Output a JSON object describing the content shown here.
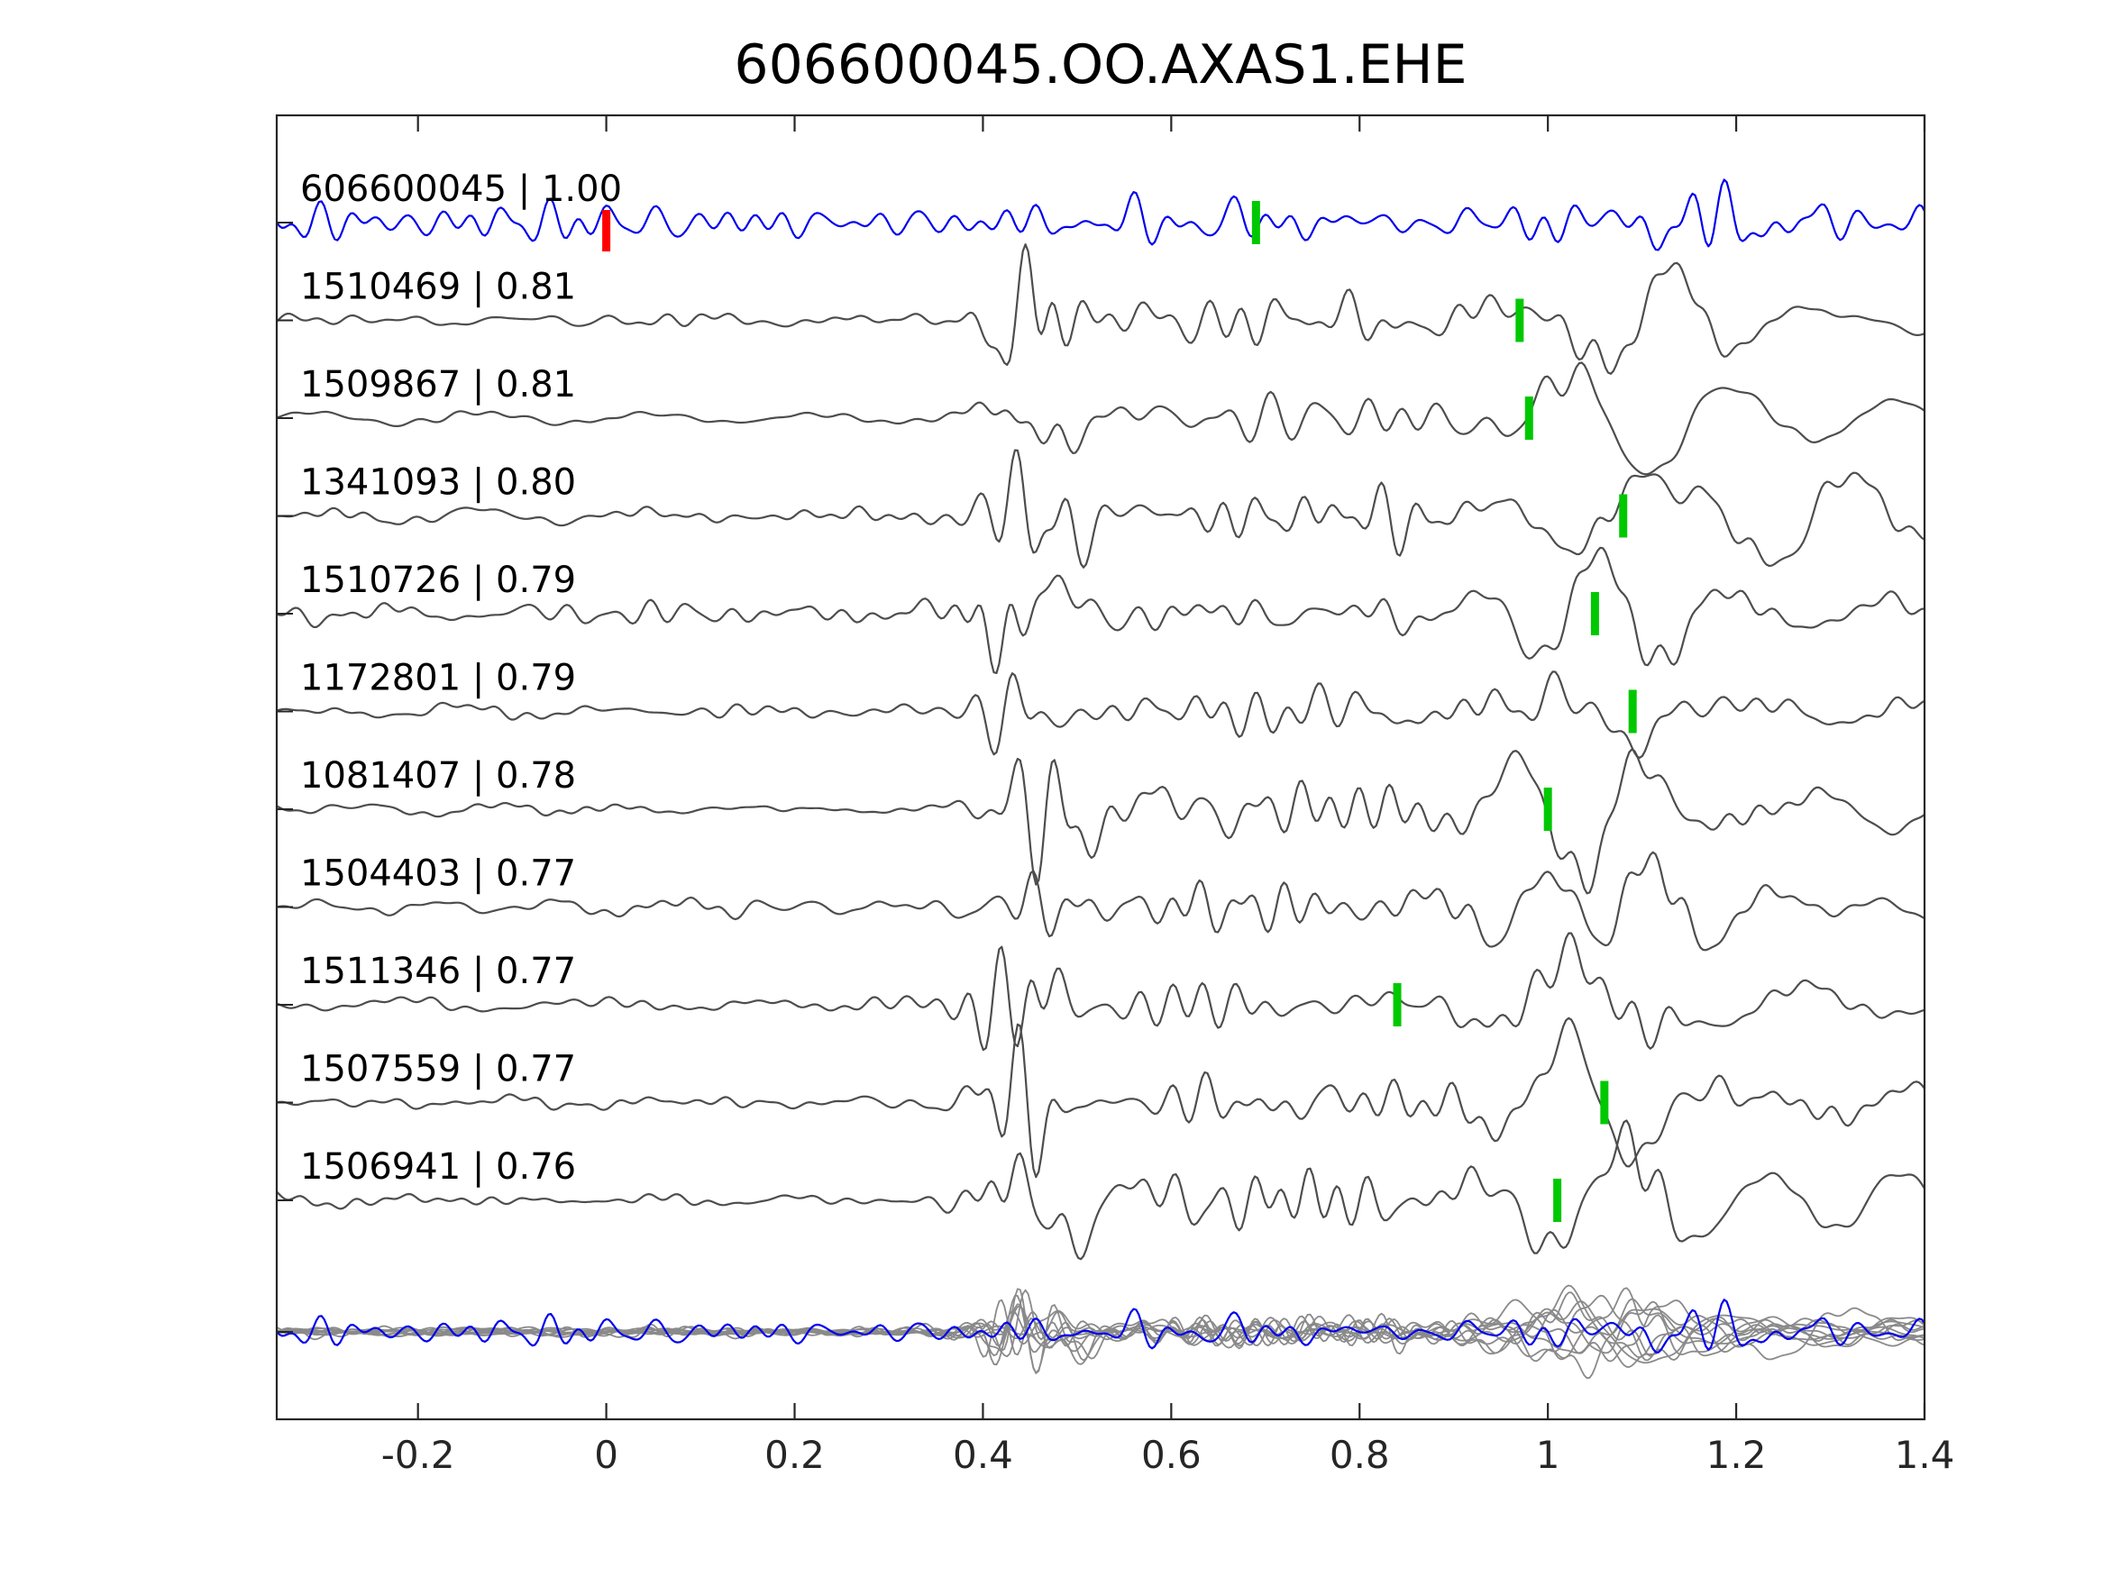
{
  "title": "606600045.OO.AXAS1.EHE",
  "chart_data": {
    "type": "line",
    "subtype": "seismic-waveform-stack",
    "title": "606600045.OO.AXAS1.EHE",
    "xlabel": "",
    "ylabel": "",
    "xlim": [
      -0.35,
      1.4
    ],
    "x_ticks": [
      -0.2,
      0,
      0.2,
      0.4,
      0.6,
      0.8,
      1,
      1.2,
      1.4
    ],
    "x_tick_labels": [
      "-0.2",
      "0",
      "0.2",
      "0.4",
      "0.6",
      "0.8",
      "1",
      "1.2",
      "1.4"
    ],
    "grid": false,
    "legend": false,
    "colors": {
      "reference_trace": "#0000ee",
      "template_trace": "#4d4d4d",
      "overlay_trace": "#8a8a8a",
      "pick_marker": "#00c800",
      "reference_pick_marker": "#ff0000",
      "axis": "#262626",
      "background": "#ffffff",
      "text": "#000000"
    },
    "traces": [
      {
        "id": "606600045",
        "correlation": 1.0,
        "label": "606600045 | 1.00",
        "is_reference": true,
        "pick_time": 0.69,
        "origin_marker_time": 0.0
      },
      {
        "id": "1510469",
        "correlation": 0.81,
        "label": "1510469 | 0.81",
        "is_reference": false,
        "pick_time": 0.97,
        "origin_marker_time": null
      },
      {
        "id": "1509867",
        "correlation": 0.81,
        "label": "1509867 | 0.81",
        "is_reference": false,
        "pick_time": 0.98,
        "origin_marker_time": null
      },
      {
        "id": "1341093",
        "correlation": 0.8,
        "label": "1341093 | 0.80",
        "is_reference": false,
        "pick_time": 1.08,
        "origin_marker_time": null
      },
      {
        "id": "1510726",
        "correlation": 0.79,
        "label": "1510726 | 0.79",
        "is_reference": false,
        "pick_time": 1.05,
        "origin_marker_time": null
      },
      {
        "id": "1172801",
        "correlation": 0.79,
        "label": "1172801 | 0.79",
        "is_reference": false,
        "pick_time": 1.09,
        "origin_marker_time": null
      },
      {
        "id": "1081407",
        "correlation": 0.78,
        "label": "1081407 | 0.78",
        "is_reference": false,
        "pick_time": 1.0,
        "origin_marker_time": null
      },
      {
        "id": "1504403",
        "correlation": 0.77,
        "label": "1504403 | 0.77",
        "is_reference": false,
        "pick_time": null,
        "origin_marker_time": null
      },
      {
        "id": "1511346",
        "correlation": 0.77,
        "label": "1511346 | 0.77",
        "is_reference": false,
        "pick_time": 0.84,
        "origin_marker_time": null
      },
      {
        "id": "1507559",
        "correlation": 0.77,
        "label": "1507559 | 0.77",
        "is_reference": false,
        "pick_time": 1.06,
        "origin_marker_time": null
      },
      {
        "id": "1506941",
        "correlation": 0.76,
        "label": "1506941 | 0.76",
        "is_reference": false,
        "pick_time": 1.01,
        "origin_marker_time": null
      }
    ],
    "overlay_row": {
      "description": "all template traces overlaid in gray with the blue reference trace on top",
      "all_traces_overlaid": true
    }
  }
}
